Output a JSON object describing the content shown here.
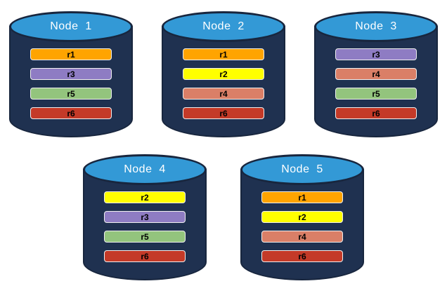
{
  "diagram": {
    "kind": "database-node-replica-distribution",
    "colors": {
      "cylinder_body": "#1F3150",
      "cylinder_outline": "#18263E",
      "cylinder_top": "#3399D6",
      "node_label_text": "#FFFFFF",
      "bar_text": "#000000",
      "bar_border": "#F0F0F0",
      "replicas": {
        "r1": "#FFA400",
        "r2": "#FFFF00",
        "r3": "#8E7CC3",
        "r4": "#DA7F67",
        "r5": "#93C47D",
        "r6": "#C43A28"
      }
    },
    "rows": [
      {
        "node_indices": [
          0,
          1,
          2
        ]
      },
      {
        "node_indices": [
          3,
          4
        ]
      }
    ]
  },
  "nodes": [
    {
      "label": "Node  1",
      "replicas": [
        "r1",
        "r3",
        "r5",
        "r6"
      ]
    },
    {
      "label": "Node  2",
      "replicas": [
        "r1",
        "r2",
        "r4",
        "r6"
      ]
    },
    {
      "label": "Node  3",
      "replicas": [
        "r3",
        "r4",
        "r5",
        "r6"
      ]
    },
    {
      "label": "Node  4",
      "replicas": [
        "r2",
        "r3",
        "r5",
        "r6"
      ]
    },
    {
      "label": "Node  5",
      "replicas": [
        "r1",
        "r2",
        "r4",
        "r6"
      ]
    }
  ]
}
